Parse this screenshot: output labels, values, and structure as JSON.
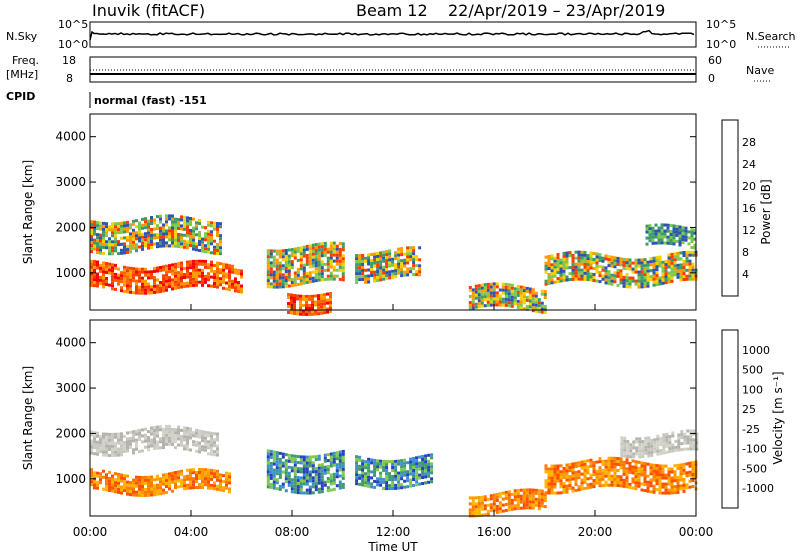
{
  "header": {
    "station": "Inuvik (fitACF)",
    "beam": "Beam 12",
    "date_range": "22/Apr/2019 – 23/Apr/2019"
  },
  "panels": {
    "nsky": {
      "left_label": "N.Sky",
      "right_label": "N.Search",
      "ticks_left": [
        "10^5",
        "10^0"
      ],
      "ticks_right": [
        "10^5",
        "10^0"
      ]
    },
    "freq": {
      "left_label_1": "Freq.",
      "left_label_2": "[MHz]",
      "right_label": "Nave",
      "ticks_left": [
        "18",
        "8"
      ],
      "ticks_right": [
        "60",
        "0"
      ]
    },
    "cpid": {
      "label": "CPID",
      "text": "normal (fast) -151"
    }
  },
  "axes": {
    "ylabel": "Slant Range [km]",
    "xlabel": "Time UT",
    "xticks": [
      "00:00",
      "04:00",
      "08:00",
      "12:00",
      "16:00",
      "20:00",
      "00:00"
    ],
    "yticks": [
      "1000",
      "2000",
      "3000",
      "4000"
    ]
  },
  "chart_data": [
    {
      "type": "heatmap",
      "name": "power",
      "x_range_hours": [
        0,
        24
      ],
      "y_range_km": [
        180,
        4500
      ],
      "colorbar": {
        "label": "Power [dB]",
        "ticks": [
          "4",
          "8",
          "12",
          "16",
          "20",
          "24",
          "28"
        ],
        "colors": [
          "#1414ff",
          "#2d55b4",
          "#3d9a6a",
          "#7ec850",
          "#f2d200",
          "#ff9a00",
          "#ff6400",
          "#ff0000"
        ]
      },
      "regions": [
        {
          "t0": 0.0,
          "t1": 6.0,
          "r0": 650,
          "r1": 1200,
          "level": "high"
        },
        {
          "t0": 0.0,
          "t1": 5.2,
          "r0": 1500,
          "r1": 2200,
          "level": "medium"
        },
        {
          "t0": 7.8,
          "t1": 9.5,
          "r0": 180,
          "r1": 600,
          "level": "high"
        },
        {
          "t0": 7.0,
          "t1": 10.0,
          "r0": 800,
          "r1": 1600,
          "level": "medium"
        },
        {
          "t0": 10.5,
          "t1": 13.0,
          "r0": 900,
          "r1": 1500,
          "level": "medium"
        },
        {
          "t0": 15.0,
          "t1": 18.0,
          "r0": 200,
          "r1": 700,
          "level": "medium"
        },
        {
          "t0": 18.0,
          "t1": 24.0,
          "r0": 800,
          "r1": 1400,
          "level": "medium"
        },
        {
          "t0": 22.0,
          "t1": 24.0,
          "r0": 1600,
          "r1": 2000,
          "level": "low"
        }
      ]
    },
    {
      "type": "heatmap",
      "name": "velocity",
      "x_range_hours": [
        0,
        24
      ],
      "y_range_km": [
        180,
        4500
      ],
      "colorbar": {
        "label": "Velocity [m s⁻¹]",
        "ticks": [
          "1000",
          "500",
          "100",
          "25",
          "-25",
          "-100",
          "-500",
          "-1000"
        ],
        "colors": [
          "#2a3fc0",
          "#3a8fd0",
          "#3d9a6a",
          "#7ec850",
          "#c8c8c0",
          "#ffb400",
          "#ff7a00",
          "#ff3000",
          "#ff0000"
        ]
      },
      "regions": [
        {
          "t0": 0.0,
          "t1": 5.5,
          "r0": 700,
          "r1": 1150,
          "level": "negative"
        },
        {
          "t0": 0.0,
          "t1": 5.0,
          "r0": 1600,
          "r1": 2100,
          "level": "near-zero"
        },
        {
          "t0": 7.0,
          "t1": 10.0,
          "r0": 800,
          "r1": 1600,
          "level": "positive"
        },
        {
          "t0": 10.5,
          "t1": 13.5,
          "r0": 900,
          "r1": 1500,
          "level": "positive"
        },
        {
          "t0": 15.0,
          "t1": 18.0,
          "r0": 300,
          "r1": 700,
          "level": "negative"
        },
        {
          "t0": 18.0,
          "t1": 24.0,
          "r0": 800,
          "r1": 1400,
          "level": "negative"
        },
        {
          "t0": 21.0,
          "t1": 24.0,
          "r0": 1600,
          "r1": 2000,
          "level": "near-zero"
        }
      ]
    }
  ]
}
